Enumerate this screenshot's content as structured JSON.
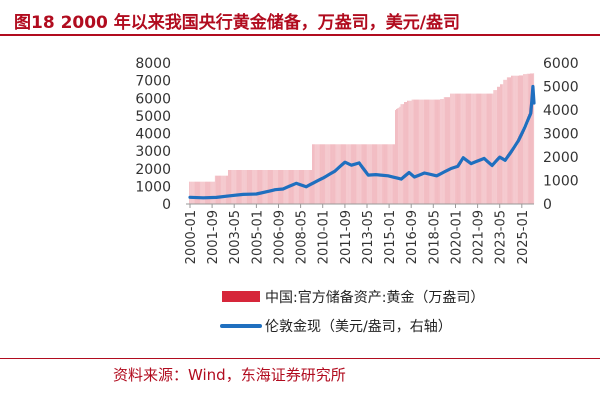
{
  "figure": {
    "title": "图18  2000 年以来我国央行黄金储备，万盎司，美元/盎司",
    "source": "资料来源：Wind，东海证券研究所"
  },
  "chart_data": {
    "type": "bar",
    "x_tick_labels": [
      "2000-01",
      "2001-09",
      "2003-05",
      "2005-01",
      "2006-09",
      "2008-05",
      "2010-01",
      "2011-09",
      "2013-05",
      "2015-01",
      "2016-09",
      "2018-05",
      "2020-01",
      "2021-09",
      "2023-05",
      "2025-01"
    ],
    "x_range": [
      "2000-01",
      "2025-12"
    ],
    "y_left": {
      "range": [
        0,
        8000
      ],
      "ticks": [
        0,
        1000,
        2000,
        3000,
        4000,
        5000,
        6000,
        7000,
        8000
      ]
    },
    "y_right": {
      "range": [
        0,
        6000
      ],
      "ticks": [
        0,
        1000,
        2000,
        3000,
        4000,
        5000,
        6000
      ]
    },
    "grid": false,
    "legend_placement": "bottom",
    "series": [
      {
        "name": "中国:官方储备资产:黄金（万盎司）",
        "kind": "bar",
        "axis": "left",
        "color": "#d6263a",
        "points": [
          {
            "x": "2000-01",
            "y": 1267
          },
          {
            "x": "2001-12",
            "y": 1608
          },
          {
            "x": "2002-12",
            "y": 1929
          },
          {
            "x": "2009-04",
            "y": 3389
          },
          {
            "x": "2015-07",
            "y": 5331
          },
          {
            "x": "2015-08",
            "y": 5393
          },
          {
            "x": "2015-09",
            "y": 5424
          },
          {
            "x": "2015-10",
            "y": 5457
          },
          {
            "x": "2015-11",
            "y": 5519
          },
          {
            "x": "2015-12",
            "y": 5666
          },
          {
            "x": "2016-03",
            "y": 5786
          },
          {
            "x": "2016-06",
            "y": 5861
          },
          {
            "x": "2016-10",
            "y": 5924
          },
          {
            "x": "2018-12",
            "y": 5956
          },
          {
            "x": "2019-03",
            "y": 6062
          },
          {
            "x": "2019-09",
            "y": 6264
          },
          {
            "x": "2022-12",
            "y": 6464
          },
          {
            "x": "2023-03",
            "y": 6650
          },
          {
            "x": "2023-06",
            "y": 6795
          },
          {
            "x": "2023-09",
            "y": 7046
          },
          {
            "x": "2023-12",
            "y": 7187
          },
          {
            "x": "2024-04",
            "y": 7280
          },
          {
            "x": "2024-11",
            "y": 7296
          },
          {
            "x": "2025-03",
            "y": 7370
          },
          {
            "x": "2025-06",
            "y": 7390
          },
          {
            "x": "2025-09",
            "y": 7406
          },
          {
            "x": "2025-12",
            "y": 7415
          }
        ]
      },
      {
        "name": "伦敦金现（美元/盎司，右轴）",
        "kind": "line",
        "axis": "right",
        "color": "#1f6fbf",
        "points": [
          {
            "x": "2000-01",
            "y": 285
          },
          {
            "x": "2001-01",
            "y": 265
          },
          {
            "x": "2002-01",
            "y": 280
          },
          {
            "x": "2003-01",
            "y": 350
          },
          {
            "x": "2004-01",
            "y": 410
          },
          {
            "x": "2005-01",
            "y": 425
          },
          {
            "x": "2006-01",
            "y": 550
          },
          {
            "x": "2006-06",
            "y": 610
          },
          {
            "x": "2007-01",
            "y": 640
          },
          {
            "x": "2008-01",
            "y": 880
          },
          {
            "x": "2008-10",
            "y": 730
          },
          {
            "x": "2009-06",
            "y": 930
          },
          {
            "x": "2010-01",
            "y": 1100
          },
          {
            "x": "2010-12",
            "y": 1400
          },
          {
            "x": "2011-09",
            "y": 1780
          },
          {
            "x": "2012-03",
            "y": 1650
          },
          {
            "x": "2012-10",
            "y": 1750
          },
          {
            "x": "2013-06",
            "y": 1230
          },
          {
            "x": "2014-01",
            "y": 1250
          },
          {
            "x": "2014-12",
            "y": 1200
          },
          {
            "x": "2015-12",
            "y": 1060
          },
          {
            "x": "2016-07",
            "y": 1340
          },
          {
            "x": "2016-12",
            "y": 1150
          },
          {
            "x": "2017-09",
            "y": 1320
          },
          {
            "x": "2018-08",
            "y": 1200
          },
          {
            "x": "2019-09",
            "y": 1510
          },
          {
            "x": "2020-03",
            "y": 1600
          },
          {
            "x": "2020-08",
            "y": 1970
          },
          {
            "x": "2021-03",
            "y": 1720
          },
          {
            "x": "2022-03",
            "y": 1940
          },
          {
            "x": "2022-10",
            "y": 1640
          },
          {
            "x": "2023-05",
            "y": 1990
          },
          {
            "x": "2023-10",
            "y": 1860
          },
          {
            "x": "2024-03",
            "y": 2200
          },
          {
            "x": "2024-10",
            "y": 2700
          },
          {
            "x": "2025-04",
            "y": 3300
          },
          {
            "x": "2025-09",
            "y": 3850
          },
          {
            "x": "2025-10",
            "y": 4380
          },
          {
            "x": "2025-11",
            "y": 5000
          },
          {
            "x": "2025-12",
            "y": 4300
          }
        ]
      }
    ]
  }
}
